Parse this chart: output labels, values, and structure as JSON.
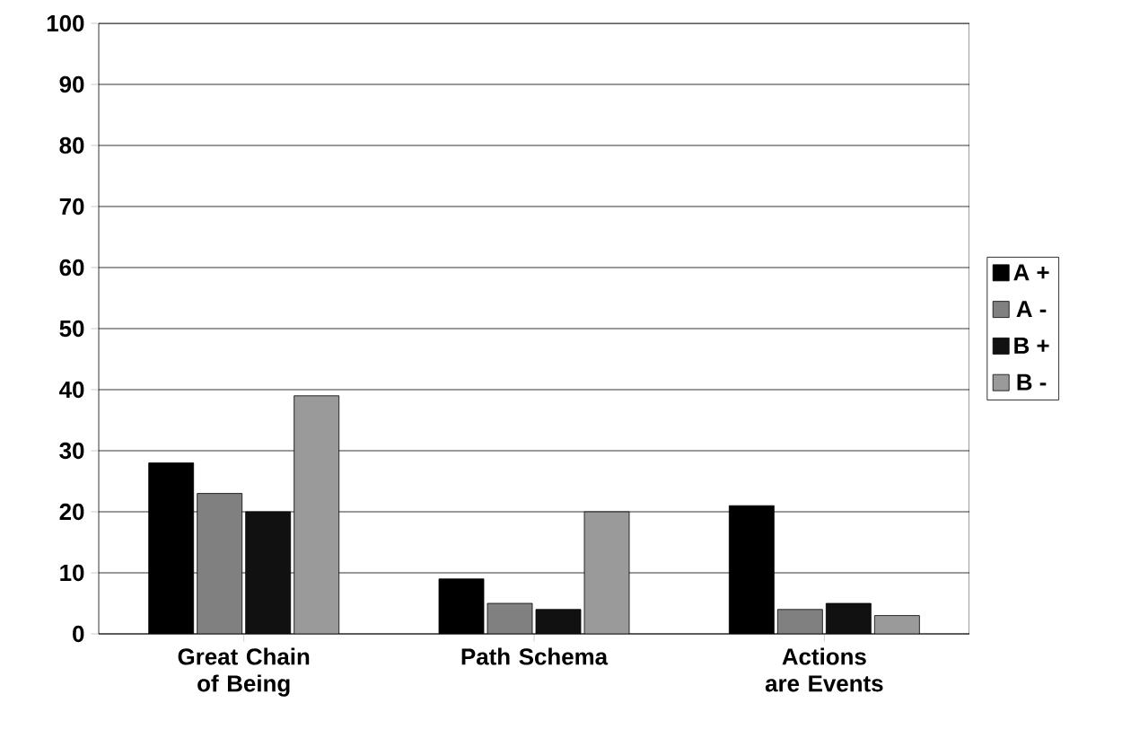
{
  "chart_data": {
    "type": "bar",
    "categories": [
      "Great Chain of Being",
      "Path Schema",
      "Actions are Events"
    ],
    "series": [
      {
        "name": "A +",
        "color": "#000000",
        "values": [
          28,
          9,
          21
        ]
      },
      {
        "name": "A -",
        "color": "#808080",
        "values": [
          23,
          5,
          4
        ]
      },
      {
        "name": "B +",
        "color": "#111111",
        "values": [
          20,
          4,
          5
        ]
      },
      {
        "name": "B -",
        "color": "#9a9a9a",
        "values": [
          39,
          20,
          3
        ]
      }
    ],
    "ylim": [
      0,
      100
    ],
    "yticks": [
      0,
      10,
      20,
      30,
      40,
      50,
      60,
      70,
      80,
      90,
      100
    ],
    "grid": "y",
    "legend": "right"
  }
}
